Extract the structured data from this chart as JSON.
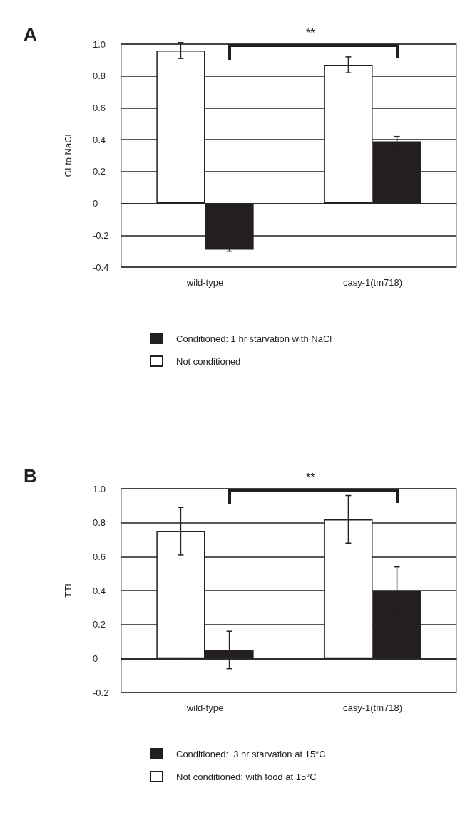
{
  "chart_data": [
    {
      "type": "bar",
      "title": "A",
      "ylabel": "CI to NaCl",
      "categories": [
        "wild-type",
        "casy-1(tm718)"
      ],
      "series": [
        {
          "name": "Conditioned: 1 hr starvation with NaCl",
          "color": "#231f20",
          "values": [
            -0.29,
            0.39
          ],
          "errors": [
            0.01,
            0.03
          ]
        },
        {
          "name": "Not conditioned",
          "color": "#ffffff",
          "values": [
            0.96,
            0.87
          ],
          "errors": [
            0.05,
            0.05
          ]
        }
      ],
      "ylim": [
        -0.4,
        1.0
      ],
      "yticks": [
        -0.4,
        -0.2,
        0,
        0.2,
        0.4,
        0.6,
        0.8,
        {
          "value": 1.0,
          "label": "1.0"
        }
      ],
      "grid": "y",
      "legend": "bottom",
      "annotations": [
        "**"
      ]
    },
    {
      "type": "bar",
      "title": "B",
      "ylabel": "TTI",
      "categories": [
        "wild-type",
        "casy-1(tm718)"
      ],
      "series": [
        {
          "name": "Conditioned:  3 hr starvation at 15°C",
          "color": "#231f20",
          "values": [
            0.05,
            0.4
          ],
          "errors": [
            0.11,
            0.14
          ]
        },
        {
          "name": "Not conditioned: with food at 15°C",
          "color": "#ffffff",
          "values": [
            0.75,
            0.82
          ],
          "errors": [
            0.14,
            0.14
          ]
        }
      ],
      "ylim": [
        -0.2,
        1.0
      ],
      "yticks": [
        -0.2,
        0,
        0.2,
        0.4,
        0.6,
        0.8,
        {
          "value": 1.0,
          "label": "1.0"
        }
      ],
      "grid": "y",
      "legend": "bottom",
      "annotations": [
        "**"
      ]
    }
  ]
}
